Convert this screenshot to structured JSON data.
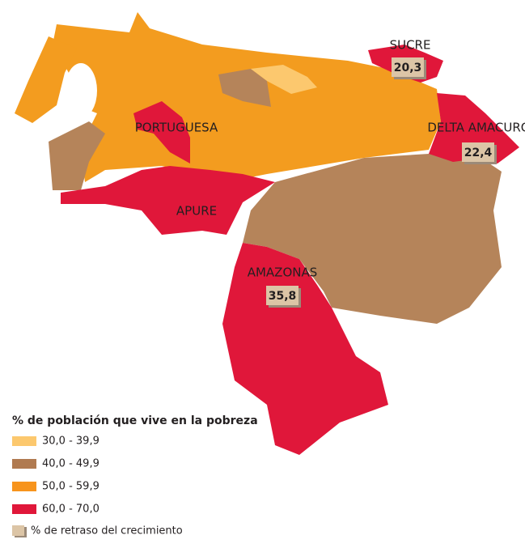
{
  "regions": [
    {
      "name": "SUCRE",
      "value": "20,3"
    },
    {
      "name": "PORTUGUESA"
    },
    {
      "name": "DELTA AMACURO",
      "value": "22,4"
    },
    {
      "name": "APURE"
    },
    {
      "name": "AMAZONAS",
      "value": "35,8"
    }
  ],
  "legend": {
    "title": "% de población que vive en la pobreza",
    "classes": [
      {
        "label": "30,0 - 39,9",
        "color": "#fcc86e"
      },
      {
        "label": "40,0 - 49,9",
        "color": "#b07a50"
      },
      {
        "label": "50,0 - 59,9",
        "color": "#f7941d"
      },
      {
        "label": "60,0 - 70,0",
        "color": "#e0173a"
      }
    ],
    "stunting_label": "% de retraso del crecimiento",
    "stunting_color": "#dcc5a6"
  }
}
